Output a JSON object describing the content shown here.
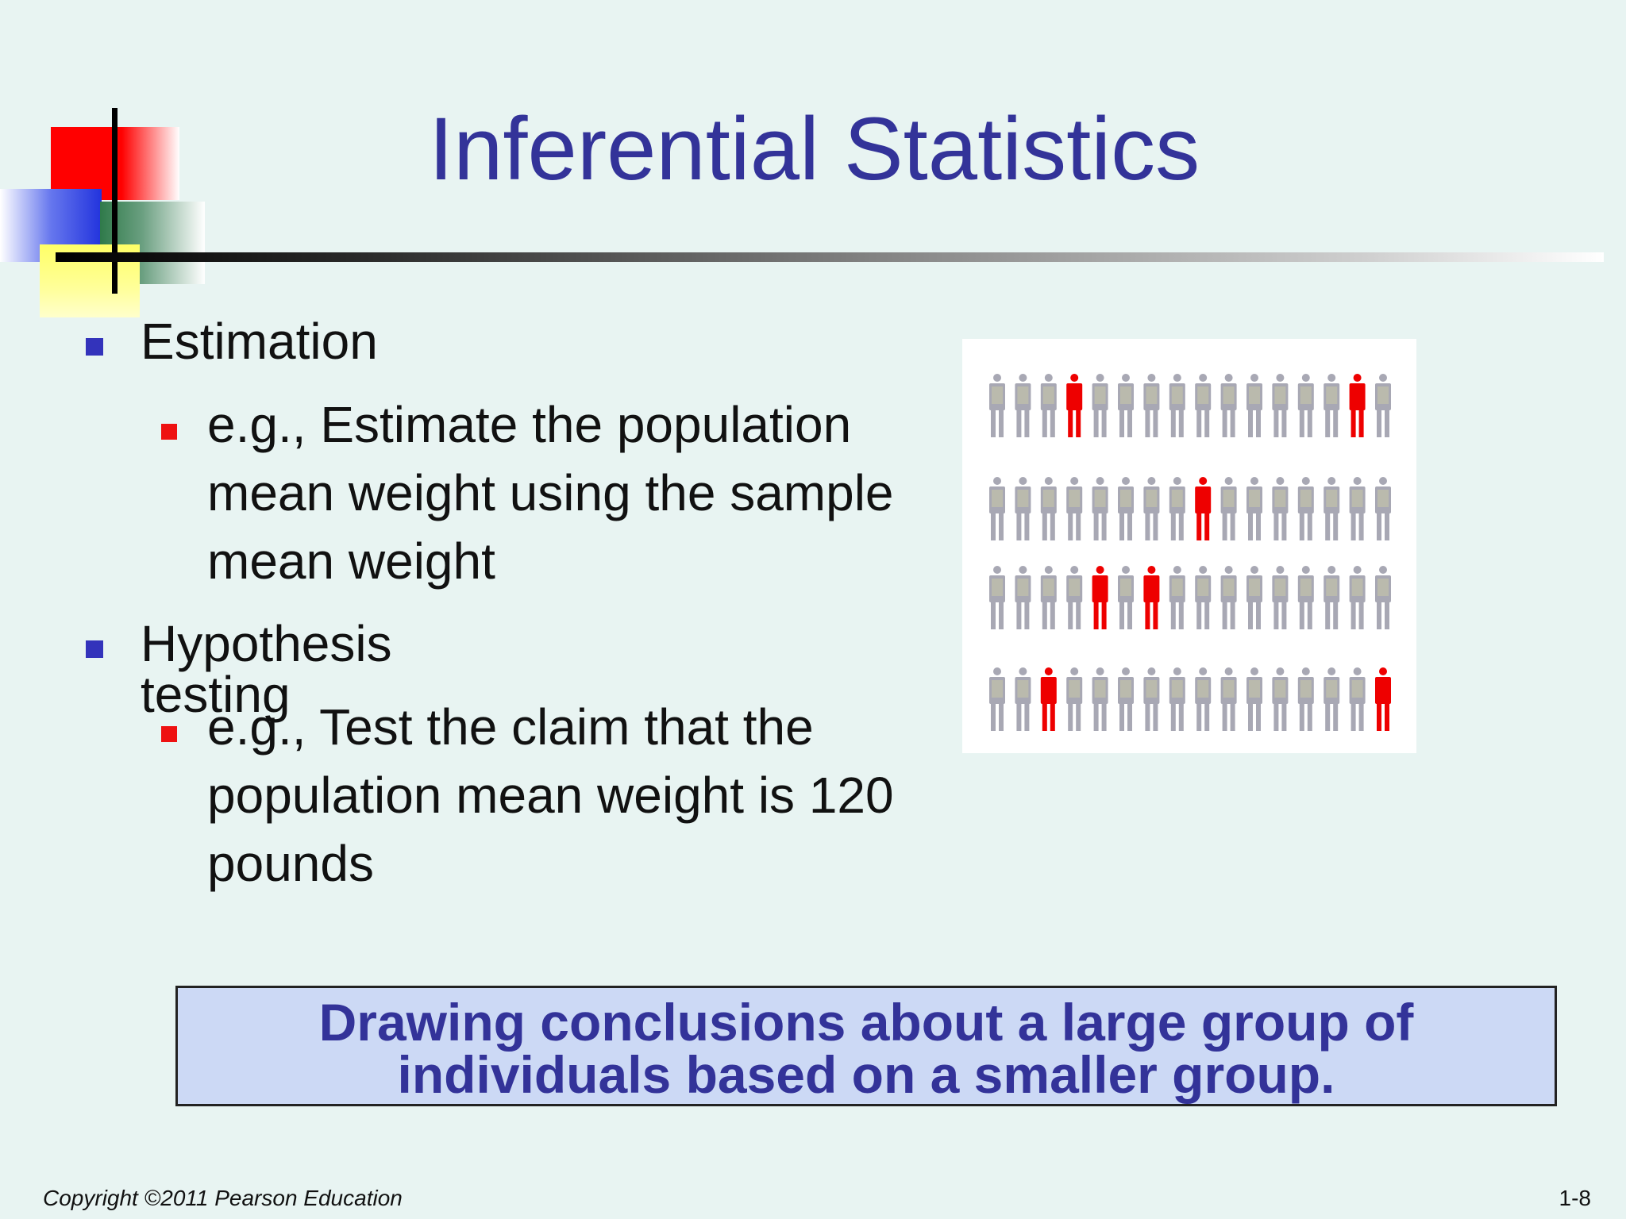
{
  "slide": {
    "title": "Inferential Statistics",
    "bullets": [
      {
        "label": "Estimation",
        "sub": "e.g., Estimate the population mean weight using the sample mean weight"
      },
      {
        "label": "Hypothesis testing",
        "sub": "e.g., Test the claim that the population mean weight is 120 pounds"
      }
    ],
    "callout": {
      "line1": "Drawing conclusions about a large group of",
      "line2": "individuals based on a smaller group."
    },
    "footer": {
      "copyright": "Copyright ©2011 Pearson Education",
      "page": "1-8"
    }
  },
  "colors": {
    "title": "#333399",
    "bullet_level1": "#3333bb",
    "bullet_level2": "#ee1111",
    "highlight_figure": "#ee0000",
    "other_figure": "#a8a8b4",
    "callout_bg": "#ccd9f5"
  },
  "population_grid": {
    "rows": 4,
    "columns": 16,
    "highlighted": [
      [
        0,
        3
      ],
      [
        0,
        14
      ],
      [
        1,
        8
      ],
      [
        2,
        4
      ],
      [
        2,
        6
      ],
      [
        3,
        2
      ],
      [
        3,
        15
      ]
    ]
  }
}
